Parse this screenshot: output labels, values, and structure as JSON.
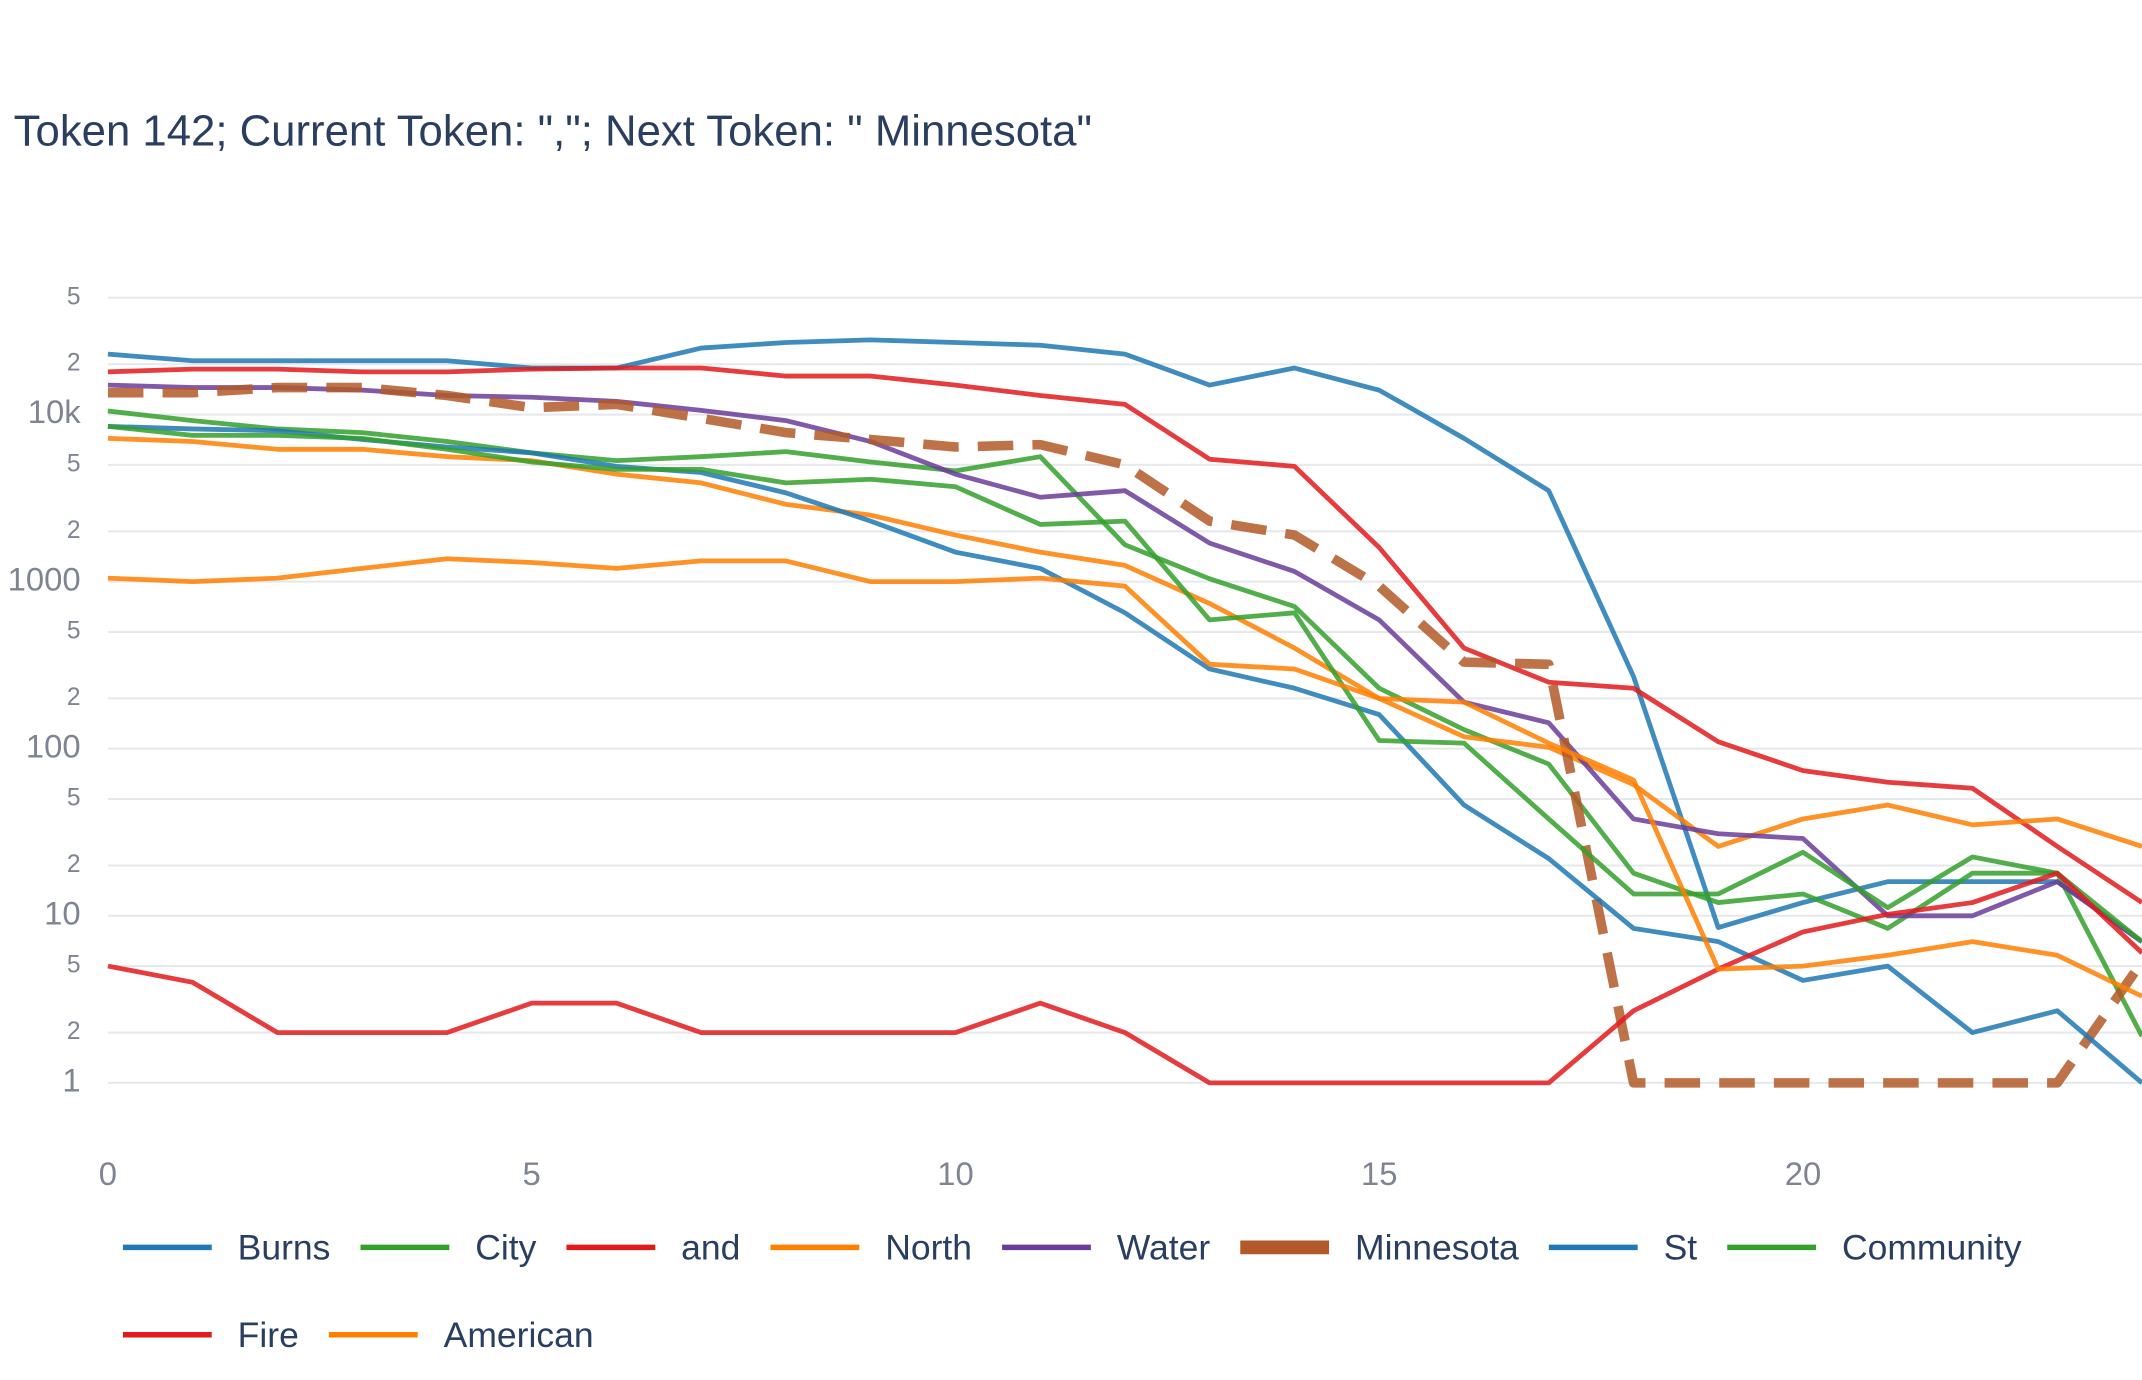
{
  "chart_data": {
    "type": "line",
    "title": "Token 142; Current Token: \",\"; Next Token: \" Minnesota\"",
    "x": [
      0,
      1,
      2,
      3,
      4,
      5,
      6,
      7,
      8,
      9,
      10,
      11,
      12,
      13,
      14,
      15,
      16,
      17,
      18,
      19,
      20,
      21,
      22,
      23,
      24
    ],
    "xlim": [
      0,
      24
    ],
    "xticks": [
      0,
      5,
      10,
      15,
      20
    ],
    "ylim": [
      0.45,
      70000
    ],
    "log_y": true,
    "grid": true,
    "legend": "bottom",
    "yticks": [
      1,
      {
        "value": 2,
        "label": "2"
      },
      {
        "value": 5,
        "label": "5"
      },
      10,
      {
        "value": 20,
        "label": "2"
      },
      {
        "value": 50,
        "label": "5"
      },
      100,
      {
        "value": 200,
        "label": "2"
      },
      {
        "value": 500,
        "label": "5"
      },
      1000,
      {
        "value": 2000,
        "label": "2"
      },
      {
        "value": 5000,
        "label": "5"
      },
      {
        "value": 10000,
        "label": "10k"
      },
      {
        "value": 20000,
        "label": "2"
      },
      {
        "value": 50000,
        "label": "5"
      }
    ],
    "series": [
      {
        "name": "Burns",
        "color": "#1f78b4",
        "values": [
          23000,
          21000,
          21000,
          21000,
          21000,
          19000,
          19000,
          25000,
          27000,
          28000,
          27000,
          26000,
          23000,
          15000,
          19000,
          14000,
          7200,
          3500,
          270,
          8.5,
          12,
          16,
          16,
          16,
          7
        ]
      },
      {
        "name": "City",
        "color": "#33a02c",
        "values": [
          10500,
          9200,
          8200,
          7800,
          6900,
          5900,
          5300,
          5600,
          6000,
          5200,
          4600,
          5600,
          1660,
          1040,
          710,
          230,
          130,
          81,
          18,
          12,
          13.5,
          8.4,
          18,
          18,
          1.9
        ]
      },
      {
        "name": "and",
        "color": "#e31a1c",
        "values": [
          18000,
          18700,
          18700,
          18000,
          18000,
          18700,
          19000,
          19000,
          17000,
          17000,
          15000,
          13000,
          11500,
          5400,
          4900,
          1600,
          400,
          250,
          230,
          110,
          74,
          63,
          58,
          26,
          12
        ]
      },
      {
        "name": "North",
        "color": "#ff7f00",
        "values": [
          7200,
          6900,
          6200,
          6200,
          5600,
          5300,
          4400,
          3900,
          2900,
          2500,
          1900,
          1500,
          1250,
          740,
          400,
          200,
          118,
          102,
          61,
          26,
          38,
          46,
          35,
          38,
          26
        ]
      },
      {
        "name": "Water",
        "color": "#6a3d9a",
        "values": [
          15000,
          14500,
          14500,
          14000,
          13000,
          12700,
          12000,
          10600,
          9200,
          6900,
          4400,
          3200,
          3500,
          1700,
          1150,
          590,
          190,
          143,
          38,
          31,
          29,
          10,
          10,
          16,
          7
        ]
      },
      {
        "name": "Minnesota",
        "color": "#b15928",
        "dash": true,
        "width": 7,
        "values": [
          13500,
          13500,
          14500,
          14500,
          13000,
          11000,
          11500,
          9500,
          7800,
          7100,
          6400,
          6600,
          5000,
          2300,
          1900,
          940,
          330,
          320,
          1,
          1,
          1,
          1,
          1,
          1,
          5.3
        ]
      },
      {
        "name": "St",
        "color": "#1f78b4",
        "values": [
          8500,
          8200,
          8000,
          7100,
          6400,
          5900,
          4900,
          4500,
          3400,
          2300,
          1500,
          1200,
          650,
          300,
          230,
          160,
          46,
          22,
          8.4,
          7,
          4.1,
          5,
          2,
          2.7,
          1
        ]
      },
      {
        "name": "Community",
        "color": "#33a02c",
        "values": [
          8500,
          7500,
          7500,
          7200,
          6200,
          5200,
          4700,
          4700,
          3900,
          4100,
          3700,
          2200,
          2300,
          590,
          650,
          112,
          108,
          38,
          13.5,
          13.5,
          24,
          11.2,
          22.5,
          18,
          7
        ]
      },
      {
        "name": "Fire",
        "color": "#e31a1c",
        "values": [
          5,
          4,
          2,
          2,
          2,
          3,
          3,
          2,
          2,
          2,
          2,
          3,
          2,
          1,
          1,
          1,
          1,
          1,
          2.7,
          4.8,
          8,
          10.2,
          12,
          18,
          6
        ]
      },
      {
        "name": "American",
        "color": "#ff7f00",
        "values": [
          1050,
          1000,
          1050,
          1200,
          1370,
          1300,
          1200,
          1330,
          1330,
          1000,
          1000,
          1050,
          940,
          320,
          300,
          200,
          190,
          108,
          65,
          4.8,
          5,
          5.8,
          7,
          5.8,
          3.3
        ]
      }
    ]
  }
}
